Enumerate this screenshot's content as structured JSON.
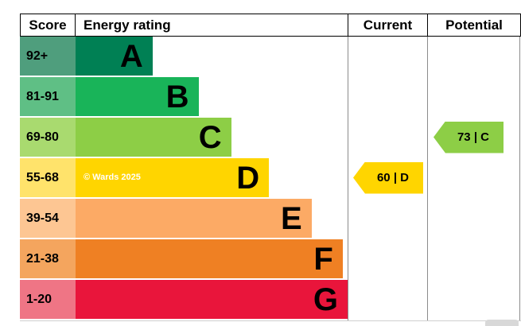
{
  "header": {
    "score": "Score",
    "energy_rating": "Energy rating",
    "current": "Current",
    "potential": "Potential"
  },
  "watermark": "© Wards 2025",
  "chart_data": {
    "type": "bar",
    "orientation": "horizontal",
    "description": "EPC energy efficiency rating chart with current and potential ratings",
    "bands": [
      {
        "score": "92+",
        "letter": "A",
        "color": "#008054",
        "tint": "#4f9e7d",
        "width_pct": 23.5
      },
      {
        "score": "81-91",
        "letter": "B",
        "color": "#19b459",
        "tint": "#5fbf85",
        "width_pct": 37.5
      },
      {
        "score": "69-80",
        "letter": "C",
        "color": "#8dce46",
        "tint": "#a9da6f",
        "width_pct": 47.5
      },
      {
        "score": "55-68",
        "letter": "D",
        "color": "#ffd500",
        "tint": "#ffe36b",
        "width_pct": 59
      },
      {
        "score": "39-54",
        "letter": "E",
        "color": "#fcaa65",
        "tint": "#fdc693",
        "width_pct": 72
      },
      {
        "score": "21-38",
        "letter": "F",
        "color": "#ef8023",
        "tint": "#f4a55e",
        "width_pct": 81.5
      },
      {
        "score": "1-20",
        "letter": "G",
        "color": "#e9153b",
        "tint": "#ef7585",
        "width_pct": 94
      }
    ],
    "current": {
      "label": "60 | D",
      "value": 60,
      "letter": "D",
      "band_index": 3,
      "color": "#ffd500"
    },
    "potential": {
      "label": "73 | C",
      "value": 73,
      "letter": "C",
      "band_index": 2,
      "color": "#8dce46"
    }
  }
}
